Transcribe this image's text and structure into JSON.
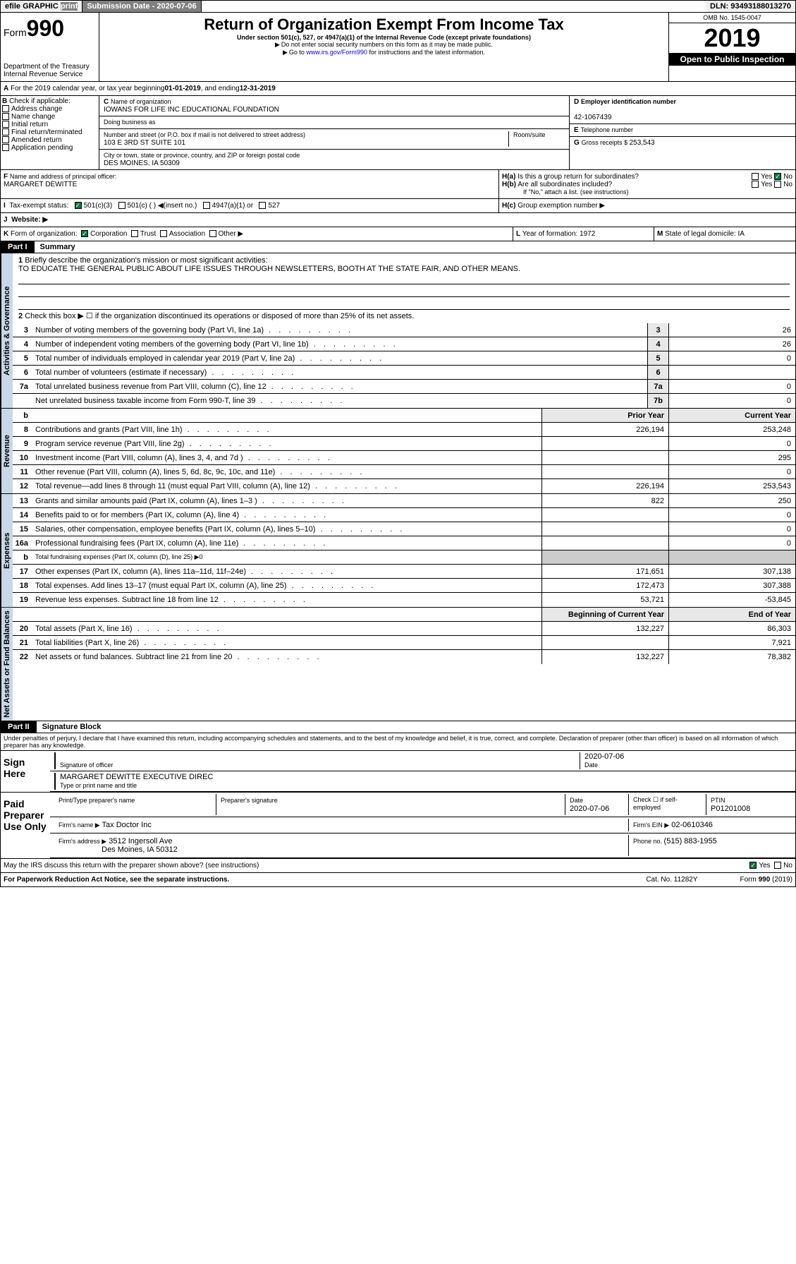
{
  "topbar": {
    "efile": "efile GRAPHIC",
    "print": "print",
    "subdate_label": "Submission Date - ",
    "subdate": "2020-07-06",
    "dln_label": "DLN: ",
    "dln": "93493188013270"
  },
  "header": {
    "form_prefix": "Form",
    "form_num": "990",
    "dept": "Department of the Treasury\nInternal Revenue Service",
    "title": "Return of Organization Exempt From Income Tax",
    "subtitle": "Under section 501(c), 527, or 4947(a)(1) of the Internal Revenue Code (except private foundations)",
    "note1": "Do not enter social security numbers on this form as it may be made public.",
    "note2_pre": "Go to ",
    "note2_link": "www.irs.gov/Form990",
    "note2_post": " for instructions and the latest information.",
    "omb": "OMB No. 1545-0047",
    "year": "2019",
    "open": "Open to Public Inspection"
  },
  "period": {
    "text_pre": "For the 2019 calendar year, or tax year beginning ",
    "begin": "01-01-2019",
    "text_mid": " , and ending ",
    "end": "12-31-2019"
  },
  "boxB": {
    "label": "Check if applicable:",
    "items": [
      "Address change",
      "Name change",
      "Initial return",
      "Final return/terminated",
      "Amended return",
      "Application pending"
    ]
  },
  "boxC": {
    "name_label": "Name of organization",
    "name": "IOWANS FOR LIFE INC EDUCATIONAL FOUNDATION",
    "dba_label": "Doing business as",
    "addr_label": "Number and street (or P.O. box if mail is not delivered to street address)",
    "room_label": "Room/suite",
    "addr": "103 E 3RD ST SUITE 101",
    "city_label": "City or town, state or province, country, and ZIP or foreign postal code",
    "city": "DES MOINES, IA  50309"
  },
  "boxD": {
    "label": "Employer identification number",
    "val": "42-1067439"
  },
  "boxE": {
    "label": "Telephone number",
    "val": ""
  },
  "boxG": {
    "label": "Gross receipts $ ",
    "val": "253,543"
  },
  "boxF": {
    "label": "Name and address of principal officer:",
    "val": "MARGARET DEWITTE"
  },
  "boxH": {
    "a_label": "Is this a group return for subordinates?",
    "b_label": "Are all subordinates included?",
    "b_note": "If \"No,\" attach a list. (see instructions)",
    "c_label": "Group exemption number ▶",
    "yes": "Yes",
    "no": "No"
  },
  "boxI": {
    "label": "Tax-exempt status:",
    "opts": [
      "501(c)(3)",
      "501(c) (  ) ◀(insert no.)",
      "4947(a)(1) or",
      "527"
    ]
  },
  "boxJ": {
    "label": "Website: ▶"
  },
  "boxK": {
    "label": "Form of organization:",
    "opts": [
      "Corporation",
      "Trust",
      "Association",
      "Other ▶"
    ]
  },
  "boxL": {
    "label": "Year of formation: ",
    "val": "1972"
  },
  "boxM": {
    "label": "State of legal domicile: ",
    "val": "IA"
  },
  "part1": {
    "label": "Part I",
    "title": "Summary",
    "q1": "Briefly describe the organization's mission or most significant activities:",
    "mission": "TO EDUCATE THE GENERAL PUBLIC ABOUT LIFE ISSUES THROUGH NEWSLETTERS, BOOTH AT THE STATE FAIR, AND OTHER MEANS.",
    "q2": "Check this box ▶ ☐  if the organization discontinued its operations or disposed of more than 25% of its net assets."
  },
  "sideLabels": {
    "gov": "Activities & Governance",
    "rev": "Revenue",
    "exp": "Expenses",
    "net": "Net Assets or Fund Balances"
  },
  "govLines": [
    {
      "n": "3",
      "d": "Number of voting members of the governing body (Part VI, line 1a)",
      "c": "3",
      "v": "26"
    },
    {
      "n": "4",
      "d": "Number of independent voting members of the governing body (Part VI, line 1b)",
      "c": "4",
      "v": "26"
    },
    {
      "n": "5",
      "d": "Total number of individuals employed in calendar year 2019 (Part V, line 2a)",
      "c": "5",
      "v": "0"
    },
    {
      "n": "6",
      "d": "Total number of volunteers (estimate if necessary)",
      "c": "6",
      "v": ""
    },
    {
      "n": "7a",
      "d": "Total unrelated business revenue from Part VIII, column (C), line 12",
      "c": "7a",
      "v": "0"
    },
    {
      "n": "",
      "d": "Net unrelated business taxable income from Form 990-T, line 39",
      "c": "7b",
      "v": "0"
    }
  ],
  "colHdrs": {
    "b": "b",
    "prior": "Prior Year",
    "current": "Current Year",
    "beg": "Beginning of Current Year",
    "end": "End of Year"
  },
  "revLines": [
    {
      "n": "8",
      "d": "Contributions and grants (Part VIII, line 1h)",
      "p": "226,194",
      "c": "253,248"
    },
    {
      "n": "9",
      "d": "Program service revenue (Part VIII, line 2g)",
      "p": "",
      "c": "0"
    },
    {
      "n": "10",
      "d": "Investment income (Part VIII, column (A), lines 3, 4, and 7d )",
      "p": "",
      "c": "295"
    },
    {
      "n": "11",
      "d": "Other revenue (Part VIII, column (A), lines 5, 6d, 8c, 9c, 10c, and 11e)",
      "p": "",
      "c": "0"
    },
    {
      "n": "12",
      "d": "Total revenue—add lines 8 through 11 (must equal Part VIII, column (A), line 12)",
      "p": "226,194",
      "c": "253,543"
    }
  ],
  "expLines": [
    {
      "n": "13",
      "d": "Grants and similar amounts paid (Part IX, column (A), lines 1–3 )",
      "p": "822",
      "c": "250"
    },
    {
      "n": "14",
      "d": "Benefits paid to or for members (Part IX, column (A), line 4)",
      "p": "",
      "c": "0"
    },
    {
      "n": "15",
      "d": "Salaries, other compensation, employee benefits (Part IX, column (A), lines 5–10)",
      "p": "",
      "c": "0"
    },
    {
      "n": "16a",
      "d": "Professional fundraising fees (Part IX, column (A), line 11e)",
      "p": "",
      "c": "0"
    },
    {
      "n": "b",
      "d": "Total fundraising expenses (Part IX, column (D), line 25) ▶0",
      "p": null,
      "c": null
    },
    {
      "n": "17",
      "d": "Other expenses (Part IX, column (A), lines 11a–11d, 11f–24e)",
      "p": "171,651",
      "c": "307,138"
    },
    {
      "n": "18",
      "d": "Total expenses. Add lines 13–17 (must equal Part IX, column (A), line 25)",
      "p": "172,473",
      "c": "307,388"
    },
    {
      "n": "19",
      "d": "Revenue less expenses. Subtract line 18 from line 12",
      "p": "53,721",
      "c": "-53,845"
    }
  ],
  "netLines": [
    {
      "n": "20",
      "d": "Total assets (Part X, line 16)",
      "p": "132,227",
      "c": "86,303"
    },
    {
      "n": "21",
      "d": "Total liabilities (Part X, line 26)",
      "p": "",
      "c": "7,921"
    },
    {
      "n": "22",
      "d": "Net assets or fund balances. Subtract line 21 from line 20",
      "p": "132,227",
      "c": "78,382"
    }
  ],
  "part2": {
    "label": "Part II",
    "title": "Signature Block",
    "perjury": "Under penalties of perjury, I declare that I have examined this return, including accompanying schedules and statements, and to the best of my knowledge and belief, it is true, correct, and complete. Declaration of preparer (other than officer) is based on all information of which preparer has any knowledge."
  },
  "sign": {
    "here": "Sign Here",
    "sig_label": "Signature of officer",
    "date": "2020-07-06",
    "date_label": "Date",
    "name": "MARGARET DEWITTE  EXECUTIVE DIREC",
    "name_label": "Type or print name and title"
  },
  "paid": {
    "label": "Paid Preparer Use Only",
    "h1": "Print/Type preparer's name",
    "h2": "Preparer's signature",
    "h3": "Date",
    "h3v": "2020-07-06",
    "h4": "Check ☐ if self-employed",
    "h5": "PTIN",
    "h5v": "P01201008",
    "firm_label": "Firm's name   ▶",
    "firm": "Tax Doctor Inc",
    "ein_label": "Firm's EIN ▶",
    "ein": "02-0610346",
    "addr_label": "Firm's address ▶",
    "addr1": "3512 Ingersoll Ave",
    "addr2": "Des Moines, IA  50312",
    "phone_label": "Phone no. ",
    "phone": "(515) 883-1955"
  },
  "footer": {
    "discuss": "May the IRS discuss this return with the preparer shown above? (see instructions)",
    "pra": "For Paperwork Reduction Act Notice, see the separate instructions.",
    "cat": "Cat. No. 11282Y",
    "form": "Form 990 (2019)"
  }
}
